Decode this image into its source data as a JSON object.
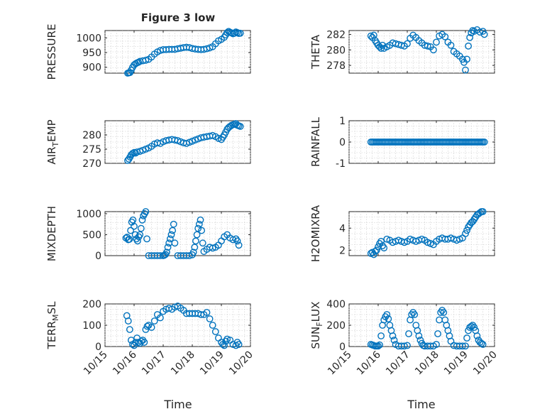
{
  "figure": {
    "title": "Figure 3 low",
    "xlabel": "Time",
    "xticks": [
      "10/15",
      "10/16",
      "10/17",
      "10/18",
      "10/19",
      "10/20"
    ]
  },
  "chart_data": [
    {
      "type": "scatter",
      "title": "Figure 3 low",
      "ylabel": "PRESSURE",
      "ylabel_base": "PRESSURE",
      "ylabel_sub": "",
      "ylabel_tail": "",
      "xlim": [
        0,
        5
      ],
      "ylim": [
        880,
        1025
      ],
      "yticks": [
        900,
        950,
        1000
      ],
      "ytick_labels": [
        "900",
        "950",
        "1000"
      ],
      "grid": true,
      "marker": "open-circle",
      "color": "#0072bd",
      "x": [
        0.78,
        0.82,
        0.86,
        0.9,
        0.95,
        1,
        1.05,
        1.1,
        1.15,
        1.2,
        1.3,
        1.4,
        1.5,
        1.6,
        1.7,
        1.8,
        1.9,
        2.0,
        2.1,
        2.2,
        2.3,
        2.4,
        2.5,
        2.6,
        2.7,
        2.8,
        2.9,
        3.0,
        3.1,
        3.2,
        3.3,
        3.4,
        3.5,
        3.6,
        3.7,
        3.8,
        3.9,
        4.0,
        4.1,
        4.15,
        4.2,
        4.25,
        4.3,
        4.35,
        4.4,
        4.45,
        4.5,
        4.55,
        4.6,
        4.65
      ],
      "y": [
        880,
        881,
        882,
        890,
        900,
        908,
        912,
        915,
        917,
        920,
        922,
        924,
        927,
        935,
        945,
        952,
        957,
        960,
        960,
        961,
        961,
        961,
        963,
        965,
        967,
        968,
        967,
        964,
        962,
        961,
        960,
        961,
        963,
        966,
        970,
        980,
        990,
        995,
        1002,
        1010,
        1018,
        1022,
        1019,
        1017,
        1014,
        1016,
        1020,
        1018,
        1015,
        1016
      ]
    },
    {
      "type": "scatter",
      "ylabel": "THETA",
      "ylabel_base": "THETA",
      "ylabel_sub": "",
      "ylabel_tail": "",
      "xlim": [
        0,
        5
      ],
      "ylim": [
        277,
        282.5
      ],
      "yticks": [
        278,
        280,
        282
      ],
      "ytick_labels": [
        "278",
        "280",
        "282"
      ],
      "grid": true,
      "marker": "open-circle",
      "color": "#0072bd",
      "x": [
        0.75,
        0.8,
        0.85,
        0.9,
        0.95,
        1.0,
        1.05,
        1.1,
        1.15,
        1.2,
        1.3,
        1.4,
        1.5,
        1.6,
        1.7,
        1.8,
        1.9,
        2.0,
        2.1,
        2.2,
        2.3,
        2.4,
        2.5,
        2.6,
        2.7,
        2.8,
        2.9,
        3.0,
        3.1,
        3.2,
        3.3,
        3.4,
        3.5,
        3.6,
        3.7,
        3.8,
        3.9,
        3.95,
        4.0,
        4.05,
        4.1,
        4.15,
        4.2,
        4.25,
        4.3,
        4.4,
        4.5,
        4.6,
        4.65
      ],
      "y": [
        281.8,
        281.6,
        281.9,
        281.2,
        280.9,
        280.6,
        280.4,
        280.2,
        280.6,
        280.2,
        280.4,
        280.6,
        280.9,
        280.8,
        280.7,
        280.6,
        280.5,
        280.8,
        281.5,
        281.9,
        281.6,
        281.2,
        280.9,
        280.6,
        280.5,
        280.4,
        280.0,
        281.0,
        281.8,
        282.0,
        281.7,
        281.0,
        280.6,
        279.8,
        279.5,
        279.2,
        278.8,
        278.4,
        277.4,
        278.8,
        280.5,
        281.6,
        282.2,
        282.5,
        282.4,
        282.6,
        282.3,
        282.4,
        282.0
      ]
    },
    {
      "type": "scatter",
      "ylabel": "AIR_TEMP",
      "ylabel_base": "AIR",
      "ylabel_sub": "T",
      "ylabel_tail": "EMP",
      "xlim": [
        0,
        5
      ],
      "ylim": [
        270,
        285
      ],
      "yticks": [
        270,
        275,
        280
      ],
      "ytick_labels": [
        "270",
        "275",
        "280"
      ],
      "grid": true,
      "marker": "open-circle",
      "color": "#0072bd",
      "x": [
        0.78,
        0.82,
        0.86,
        0.9,
        0.95,
        1.0,
        1.05,
        1.1,
        1.2,
        1.3,
        1.4,
        1.5,
        1.6,
        1.7,
        1.8,
        1.9,
        2.0,
        2.1,
        2.2,
        2.3,
        2.4,
        2.5,
        2.6,
        2.7,
        2.8,
        2.9,
        3.0,
        3.1,
        3.2,
        3.3,
        3.4,
        3.5,
        3.6,
        3.7,
        3.8,
        3.9,
        4.0,
        4.05,
        4.1,
        4.15,
        4.2,
        4.25,
        4.3,
        4.35,
        4.4,
        4.45,
        4.5,
        4.55,
        4.6,
        4.65
      ],
      "y": [
        271.0,
        271.5,
        272.2,
        273.0,
        273.5,
        273.8,
        273.6,
        274.0,
        274.2,
        274.6,
        275.0,
        275.4,
        276.0,
        276.8,
        277.2,
        277.0,
        277.6,
        278.0,
        278.2,
        278.4,
        278.2,
        278.0,
        277.6,
        277.2,
        277.0,
        277.4,
        277.8,
        278.2,
        278.6,
        279.0,
        279.2,
        279.4,
        279.6,
        279.8,
        279.4,
        278.8,
        278.4,
        279.2,
        280.0,
        281.0,
        282.0,
        282.6,
        283.0,
        283.4,
        283.6,
        283.8,
        284.0,
        283.4,
        283.2,
        283.0
      ]
    },
    {
      "type": "scatter",
      "ylabel": "RAINFALL",
      "ylabel_base": "RAINFALL",
      "ylabel_sub": "",
      "ylabel_tail": "",
      "xlim": [
        0,
        5
      ],
      "ylim": [
        -1,
        1
      ],
      "yticks": [
        -1,
        0,
        1
      ],
      "ytick_labels": [
        "-1",
        "0",
        "1"
      ],
      "grid": true,
      "marker": "open-circle",
      "color": "#0072bd",
      "x": [
        0.75,
        0.8,
        0.85,
        0.9,
        0.95,
        1.0,
        1.05,
        1.1,
        1.15,
        1.2,
        1.25,
        1.3,
        1.35,
        1.4,
        1.45,
        1.5,
        1.55,
        1.6,
        1.65,
        1.7,
        1.75,
        1.8,
        1.85,
        1.9,
        1.95,
        2.0,
        2.05,
        2.1,
        2.15,
        2.2,
        2.25,
        2.3,
        2.35,
        2.4,
        2.45,
        2.5,
        2.55,
        2.6,
        2.65,
        2.7,
        2.75,
        2.8,
        2.85,
        2.9,
        2.95,
        3.0,
        3.05,
        3.1,
        3.15,
        3.2,
        3.25,
        3.3,
        3.35,
        3.4,
        3.45,
        3.5,
        3.55,
        3.6,
        3.65,
        3.7,
        3.75,
        3.8,
        3.85,
        3.9,
        3.95,
        4.0,
        4.05,
        4.1,
        4.15,
        4.2,
        4.25,
        4.3,
        4.35,
        4.4,
        4.45,
        4.5,
        4.55,
        4.6,
        4.65
      ],
      "y": [
        0,
        0,
        0,
        0,
        0,
        0,
        0,
        0,
        0,
        0,
        0,
        0,
        0,
        0,
        0,
        0,
        0,
        0,
        0,
        0,
        0,
        0,
        0,
        0,
        0,
        0,
        0,
        0,
        0,
        0,
        0,
        0,
        0,
        0,
        0,
        0,
        0,
        0,
        0,
        0,
        0,
        0,
        0,
        0,
        0,
        0,
        0,
        0,
        0,
        0,
        0,
        0,
        0,
        0,
        0,
        0,
        0,
        0,
        0,
        0,
        0,
        0,
        0,
        0,
        0,
        0,
        0,
        0,
        0,
        0,
        0,
        0,
        0,
        0,
        0,
        0,
        0,
        0,
        0
      ]
    },
    {
      "type": "scatter",
      "ylabel": "MIXDEPTH",
      "ylabel_base": "MIXDEPTH",
      "ylabel_sub": "",
      "ylabel_tail": "",
      "xlim": [
        0,
        5
      ],
      "ylim": [
        0,
        1050
      ],
      "yticks": [
        0,
        500,
        1000
      ],
      "ytick_labels": [
        "0",
        "500",
        "1000"
      ],
      "grid": true,
      "marker": "open-circle",
      "color": "#0072bd",
      "x": [
        0.72,
        0.76,
        0.8,
        0.84,
        0.88,
        0.92,
        0.96,
        1.0,
        1.04,
        1.08,
        1.12,
        1.16,
        1.2,
        1.24,
        1.28,
        1.32,
        1.36,
        1.4,
        1.44,
        1.5,
        1.6,
        1.7,
        1.8,
        1.9,
        2.0,
        2.04,
        2.08,
        2.12,
        2.16,
        2.2,
        2.24,
        2.28,
        2.32,
        2.36,
        2.4,
        2.5,
        2.6,
        2.7,
        2.8,
        2.9,
        3.0,
        3.04,
        3.08,
        3.12,
        3.16,
        3.2,
        3.24,
        3.28,
        3.32,
        3.36,
        3.4,
        3.5,
        3.6,
        3.7,
        3.8,
        3.9,
        4.0,
        4.1,
        4.2,
        4.3,
        4.4,
        4.5,
        4.55,
        4.6
      ],
      "y": [
        420,
        440,
        380,
        390,
        600,
        800,
        850,
        700,
        500,
        400,
        350,
        450,
        500,
        650,
        850,
        950,
        1000,
        1050,
        400,
        0,
        0,
        0,
        0,
        0,
        0,
        10,
        30,
        80,
        200,
        300,
        400,
        500,
        600,
        750,
        300,
        0,
        0,
        0,
        0,
        0,
        20,
        80,
        200,
        350,
        500,
        650,
        750,
        850,
        600,
        300,
        100,
        150,
        200,
        180,
        200,
        250,
        350,
        450,
        500,
        420,
        380,
        400,
        350,
        250
      ]
    },
    {
      "type": "scatter",
      "ylabel": "H2OMIXRA",
      "ylabel_base": "H2OMIXRA",
      "ylabel_sub": "",
      "ylabel_tail": "",
      "xlim": [
        0,
        5
      ],
      "ylim": [
        1.5,
        5.5
      ],
      "yticks": [
        2,
        4
      ],
      "ytick_labels": [
        "2",
        "4"
      ],
      "grid": true,
      "marker": "open-circle",
      "color": "#0072bd",
      "x": [
        0.75,
        0.8,
        0.85,
        0.9,
        0.95,
        1.0,
        1.05,
        1.1,
        1.15,
        1.2,
        1.3,
        1.4,
        1.5,
        1.6,
        1.7,
        1.8,
        1.9,
        2.0,
        2.1,
        2.2,
        2.3,
        2.4,
        2.5,
        2.6,
        2.7,
        2.8,
        2.9,
        3.0,
        3.1,
        3.2,
        3.3,
        3.4,
        3.5,
        3.6,
        3.7,
        3.8,
        3.9,
        4.0,
        4.05,
        4.1,
        4.15,
        4.2,
        4.25,
        4.3,
        4.35,
        4.4,
        4.45,
        4.5,
        4.55,
        4.6
      ],
      "y": [
        1.7,
        1.8,
        1.6,
        1.9,
        2.0,
        2.3,
        2.6,
        2.8,
        2.4,
        2.2,
        3.0,
        2.9,
        2.7,
        2.8,
        2.9,
        2.8,
        2.7,
        2.8,
        3.0,
        2.9,
        2.8,
        2.9,
        3.0,
        2.9,
        2.7,
        2.6,
        2.5,
        2.8,
        3.0,
        3.1,
        3.0,
        3.0,
        3.1,
        3.0,
        2.9,
        3.0,
        3.1,
        3.5,
        3.8,
        4.1,
        4.3,
        4.5,
        4.6,
        4.8,
        5.0,
        5.2,
        5.3,
        5.4,
        5.5,
        5.5
      ]
    },
    {
      "type": "scatter",
      "ylabel": "TERR_MSL",
      "ylabel_base": "TERR",
      "ylabel_sub": "M",
      "ylabel_tail": "SL",
      "xlim": [
        0,
        5
      ],
      "ylim": [
        0,
        200
      ],
      "yticks": [
        0,
        100,
        200
      ],
      "ytick_labels": [
        "0",
        "100",
        "200"
      ],
      "grid": true,
      "marker": "open-circle",
      "color": "#0072bd",
      "x": [
        0.75,
        0.8,
        0.85,
        0.9,
        0.95,
        1.0,
        1.05,
        1.1,
        1.15,
        1.2,
        1.25,
        1.3,
        1.35,
        1.4,
        1.45,
        1.5,
        1.6,
        1.7,
        1.8,
        1.9,
        2.0,
        2.1,
        2.2,
        2.3,
        2.4,
        2.5,
        2.6,
        2.7,
        2.8,
        2.9,
        3.0,
        3.1,
        3.2,
        3.3,
        3.4,
        3.5,
        3.6,
        3.7,
        3.8,
        3.9,
        4.0,
        4.05,
        4.1,
        4.15,
        4.2,
        4.3,
        4.4,
        4.5,
        4.55,
        4.6
      ],
      "y": [
        145,
        120,
        80,
        30,
        10,
        5,
        20,
        40,
        20,
        15,
        25,
        30,
        20,
        80,
        95,
        100,
        90,
        120,
        150,
        135,
        165,
        175,
        180,
        175,
        185,
        190,
        180,
        170,
        155,
        155,
        155,
        155,
        155,
        150,
        150,
        160,
        130,
        100,
        70,
        40,
        20,
        10,
        5,
        25,
        35,
        30,
        10,
        5,
        20,
        10
      ]
    },
    {
      "type": "scatter",
      "ylabel": "SUN_FLUX",
      "ylabel_base": "SUN",
      "ylabel_sub": "F",
      "ylabel_tail": "LUX",
      "xlim": [
        0,
        5
      ],
      "ylim": [
        0,
        400
      ],
      "yticks": [
        0,
        200,
        400
      ],
      "ytick_labels": [
        "0",
        "200",
        "400"
      ],
      "grid": true,
      "marker": "open-circle",
      "color": "#0072bd",
      "x": [
        0.75,
        0.8,
        0.85,
        0.9,
        0.95,
        1.0,
        1.05,
        1.1,
        1.15,
        1.2,
        1.25,
        1.3,
        1.35,
        1.4,
        1.45,
        1.5,
        1.55,
        1.6,
        1.7,
        1.8,
        1.9,
        2.0,
        2.05,
        2.1,
        2.15,
        2.2,
        2.25,
        2.3,
        2.35,
        2.4,
        2.45,
        2.5,
        2.55,
        2.6,
        2.7,
        2.8,
        2.9,
        3.0,
        3.05,
        3.1,
        3.15,
        3.2,
        3.25,
        3.3,
        3.35,
        3.4,
        3.45,
        3.5,
        3.6,
        3.7,
        3.8,
        3.9,
        4.0,
        4.05,
        4.1,
        4.15,
        4.2,
        4.25,
        4.3,
        4.35,
        4.4,
        4.45,
        4.5,
        4.55,
        4.6
      ],
      "y": [
        20,
        15,
        10,
        5,
        5,
        5,
        15,
        100,
        200,
        250,
        280,
        300,
        260,
        200,
        150,
        100,
        60,
        20,
        5,
        5,
        5,
        10,
        120,
        250,
        300,
        320,
        300,
        200,
        150,
        100,
        60,
        30,
        10,
        5,
        5,
        5,
        5,
        20,
        120,
        250,
        320,
        340,
        320,
        250,
        200,
        150,
        100,
        50,
        10,
        5,
        5,
        5,
        5,
        80,
        150,
        180,
        190,
        200,
        180,
        150,
        100,
        60,
        40,
        30,
        20
      ]
    }
  ]
}
